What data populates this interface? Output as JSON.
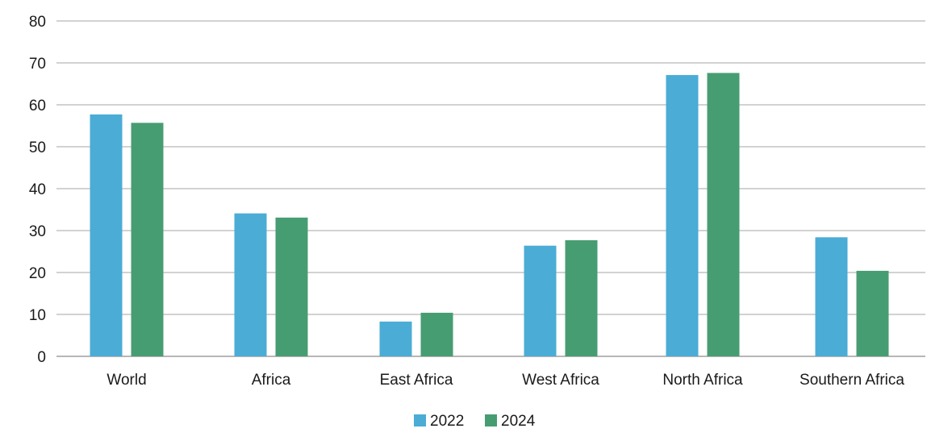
{
  "chart_data": {
    "type": "bar",
    "title": "",
    "xlabel": "",
    "ylabel": "",
    "ylim": [
      0,
      80
    ],
    "yticks": [
      0,
      10,
      20,
      30,
      40,
      50,
      60,
      70,
      80
    ],
    "grid": true,
    "legend_position": "bottom-center",
    "categories": [
      "World",
      "Africa",
      "East Africa",
      "West Africa",
      "North Africa",
      "Southern Africa"
    ],
    "series": [
      {
        "name": "2022",
        "color": "#4bacd6",
        "values": [
          57.7,
          34.1,
          8.3,
          26.4,
          67.1,
          28.4
        ]
      },
      {
        "name": "2024",
        "color": "#479d72",
        "values": [
          55.7,
          33.1,
          10.4,
          27.7,
          67.6,
          20.4
        ]
      }
    ]
  }
}
